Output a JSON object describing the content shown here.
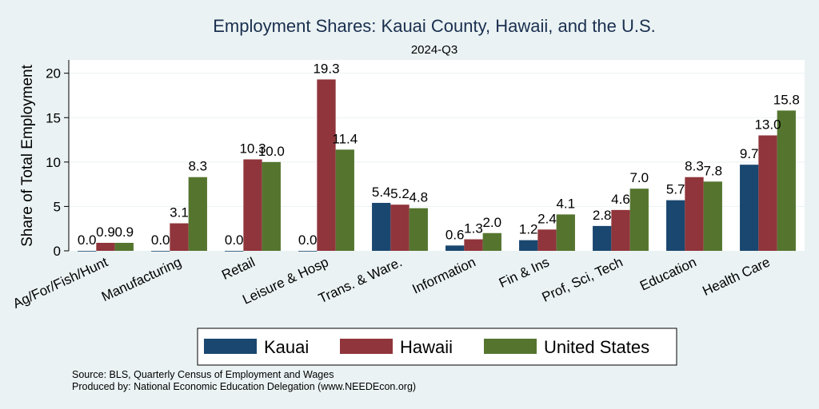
{
  "chart_data": {
    "type": "bar",
    "title": "Employment Shares: Kauai County, Hawaii, and the U.S.",
    "subtitle": "2024-Q3",
    "xlabel": "",
    "ylabel": "Share of Total Employment",
    "ylim": [
      0,
      21.5
    ],
    "yticks": [
      0,
      5,
      10,
      15,
      20
    ],
    "grid": true,
    "legend_position": "bottom",
    "categories": [
      "Ag/For/Fish/Hunt",
      "Manufacturing",
      "Retail",
      "Leisure & Hosp",
      "Trans. & Ware.",
      "Information",
      "Fin & Ins",
      "Prof, Sci, Tech",
      "Education",
      "Health Care"
    ],
    "series": [
      {
        "name": "Kauai",
        "color": "#1a476f",
        "values": [
          0.0,
          0.0,
          0.0,
          0.0,
          5.4,
          0.6,
          1.2,
          2.8,
          5.7,
          9.7
        ],
        "labels": [
          "0.0",
          "0.0",
          "0.0",
          "0.0",
          "5.4",
          "0.6",
          "1.2",
          "2.8",
          "5.7",
          "9.7"
        ]
      },
      {
        "name": "Hawaii",
        "color": "#90353b",
        "values": [
          0.9,
          3.1,
          10.3,
          19.3,
          5.2,
          1.3,
          2.4,
          4.6,
          8.3,
          13.0
        ],
        "labels": [
          "0.9",
          "3.1",
          "10.3",
          "19.3",
          "5.2",
          "1.3",
          "2.4",
          "4.6",
          "8.3",
          "13.0"
        ]
      },
      {
        "name": "United States",
        "color": "#55752f",
        "values": [
          0.9,
          8.3,
          10.0,
          11.4,
          4.8,
          2.0,
          4.1,
          7.0,
          7.8,
          15.8
        ],
        "labels": [
          "0.9",
          "8.3",
          "10.0",
          "11.4",
          "4.8",
          "2.0",
          "4.1",
          "7.0",
          "7.8",
          "15.8"
        ]
      }
    ],
    "notes": [
      "Source: BLS, Quarterly Census of Employment and Wages",
      "Produced by: National Economic Education Delegation (www.NEEDEcon.org)"
    ]
  }
}
